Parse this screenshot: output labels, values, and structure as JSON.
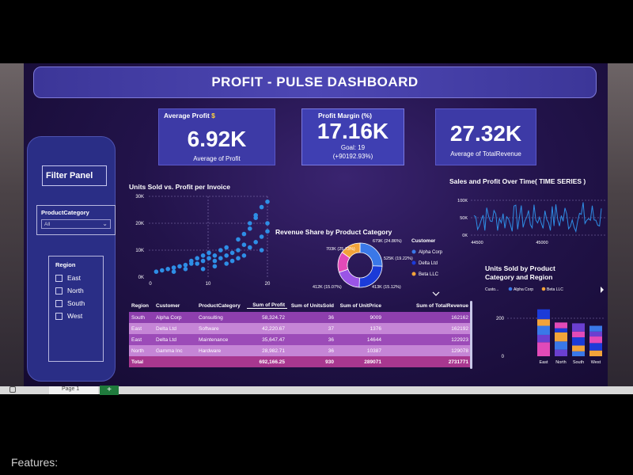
{
  "title": "PROFIT -  PULSE DASHBOARD",
  "kpis": {
    "avg_profit": {
      "label": "Average Profit",
      "value": "6.92K",
      "sub": "Average of Profit"
    },
    "profit_margin": {
      "label": "Profit Margin (%)",
      "value": "17.16K",
      "goal": "Goal: 19",
      "goal_delta": "(+90192.93%)"
    },
    "avg_revenue": {
      "value": "27.32K",
      "sub": "Average of TotalRevenue"
    }
  },
  "filter_panel": {
    "title": "Filter Panel",
    "product_category_label": "ProductCategory",
    "product_category_value": "All",
    "region_label": "Region",
    "regions": [
      "East",
      "North",
      "South",
      "West"
    ]
  },
  "scatter": {
    "title": "Units Sold vs. Profit per Invoice",
    "y_ticks": [
      "30K",
      "20K",
      "10K",
      "0K"
    ],
    "x_ticks": [
      "0",
      "10",
      "20"
    ],
    "color": "#2e8ee6"
  },
  "donut": {
    "title": "Revenue Share by Product Category",
    "legend_title": "Customer",
    "legend": [
      "Alpha Corp",
      "Delta Ltd",
      "Beta LLC"
    ],
    "labels": [
      "703K (25.73%)",
      "679K (24.86%)",
      "525K (19.22%)",
      "413K (15.12%)",
      "412K (15.07%)"
    ],
    "colors": [
      "#3a78e8",
      "#1b3bd8",
      "#9a55e6",
      "#e24ab8",
      "#f2a33a"
    ]
  },
  "timeseries": {
    "title": "Sales and Profit Over Time( TIME SERIES )",
    "y_ticks": [
      "100K",
      "50K",
      "0K"
    ],
    "x_ticks": [
      "44500",
      "45000"
    ],
    "color": "#2e8ee6"
  },
  "stacked": {
    "title": "Units Sold by Product Category and Region",
    "legend_prefix": "Custo...",
    "legend": [
      "Alpha Corp",
      "Beta LLC"
    ],
    "y_ticks": [
      "200",
      "0"
    ],
    "colors": [
      "#e24ab8",
      "#6b3fd0",
      "#3a78e8",
      "#f2a33a",
      "#1b3bd8"
    ]
  },
  "table": {
    "headers": [
      "Region",
      "Customer",
      "ProductCategory",
      "Sum of Profit",
      "Sum of UnitsSold",
      "Sum of UnitPrice",
      "Sum of TotalRevenue"
    ],
    "rows": [
      [
        "South",
        "Alpha Corp",
        "Consulting",
        "58,324.72",
        "36",
        "9009",
        "162162"
      ],
      [
        "East",
        "Delta Ltd",
        "Software",
        "42,220.67",
        "37",
        "1376",
        "162192"
      ],
      [
        "East",
        "Delta Ltd",
        "Maintenance",
        "35,647.47",
        "36",
        "14644",
        "122923"
      ],
      [
        "North",
        "Gamma Inc",
        "Hardware",
        "28,982.71",
        "36",
        "10387",
        "129078"
      ]
    ],
    "total": [
      "Total",
      "",
      "",
      "692,166.25",
      "930",
      "289071",
      "2731771"
    ]
  },
  "taskbar": {
    "sheet_tab": "Page 1",
    "add_label": "+"
  },
  "footer_text": "Features:"
}
